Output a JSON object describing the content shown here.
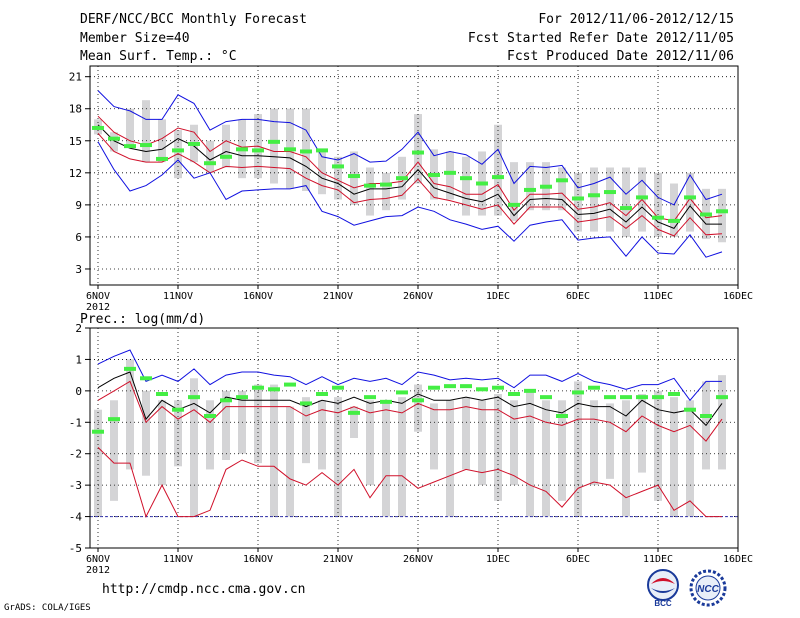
{
  "header": {
    "title": "DERF/NCC/BCC Monthly Forecast",
    "member_size": "Member Size=40",
    "variable": "Mean Surf. Temp.: °C",
    "period": "For 2012/11/06-2012/12/15",
    "started": "Fcst Started Refer Date 2012/11/05",
    "produced": "Fcst Produced Date 2012/11/06"
  },
  "footer": {
    "url": "http://cmdp.ncc.cma.gov.cn",
    "grads": "GrADS: COLA/IGES",
    "logo_left_text": "BCC",
    "logo_right_text": "NCC"
  },
  "colors": {
    "blue": "#1010e0",
    "red": "#d0102a",
    "black": "#000000",
    "green": "#44ee44",
    "bar": "#d4d4d6",
    "grid": "#000000"
  },
  "chart_data": [
    {
      "type": "line",
      "title": "Mean Surf. Temp.: °C",
      "ylabel": "°C",
      "ylim": [
        1.5,
        22
      ],
      "yticks": [
        3,
        6,
        9,
        12,
        15,
        18,
        21
      ],
      "xticks": [
        {
          "day": 1,
          "label": "6NOV",
          "sub": "2012"
        },
        {
          "day": 6,
          "label": "11NOV"
        },
        {
          "day": 11,
          "label": "16NOV"
        },
        {
          "day": 16,
          "label": "21NOV"
        },
        {
          "day": 21,
          "label": "26NOV"
        },
        {
          "day": 26,
          "label": "1DEC"
        },
        {
          "day": 31,
          "label": "6DEC"
        },
        {
          "day": 36,
          "label": "11DEC"
        },
        {
          "day": 41,
          "label": "16DEC"
        }
      ],
      "days": [
        1,
        2,
        3,
        4,
        5,
        6,
        7,
        8,
        9,
        10,
        11,
        12,
        13,
        14,
        15,
        16,
        17,
        18,
        19,
        20,
        21,
        22,
        23,
        24,
        25,
        26,
        27,
        28,
        29,
        30,
        31,
        32,
        33,
        34,
        35,
        36,
        37,
        38,
        39,
        40
      ],
      "series": [
        {
          "name": "max",
          "color": "blue",
          "values": [
            19.7,
            18.2,
            17.8,
            17.0,
            17.0,
            19.3,
            18.5,
            16.0,
            16.8,
            17.0,
            17.0,
            16.8,
            16.7,
            16.0,
            13.5,
            13.2,
            13.8,
            13.0,
            13.1,
            14.2,
            15.8,
            13.6,
            14.0,
            13.7,
            12.8,
            14.2,
            11.0,
            12.6,
            12.5,
            12.7,
            10.6,
            11.0,
            11.6,
            10.0,
            11.3,
            9.7,
            9.0,
            11.8,
            9.5,
            10.0
          ]
        },
        {
          "name": "upper",
          "color": "red",
          "values": [
            17.3,
            15.8,
            15.0,
            14.6,
            15.2,
            16.2,
            15.8,
            14.0,
            15.0,
            14.4,
            14.5,
            14.0,
            14.0,
            13.5,
            12.0,
            11.3,
            10.6,
            11.0,
            11.0,
            11.2,
            13.0,
            11.0,
            10.7,
            10.0,
            10.0,
            10.9,
            8.5,
            10.0,
            10.0,
            10.1,
            8.6,
            8.8,
            9.2,
            8.0,
            9.5,
            7.8,
            7.5,
            9.6,
            7.8,
            8.0
          ]
        },
        {
          "name": "mean",
          "color": "black",
          "values": [
            16.5,
            15.0,
            14.3,
            14.0,
            14.2,
            15.2,
            14.5,
            13.2,
            14.0,
            13.6,
            13.6,
            13.5,
            13.4,
            12.6,
            11.5,
            11.0,
            10.0,
            10.5,
            10.5,
            10.7,
            12.3,
            10.6,
            10.1,
            9.6,
            9.3,
            10.0,
            8.0,
            9.5,
            9.6,
            9.5,
            8.1,
            8.2,
            8.6,
            7.4,
            8.8,
            7.4,
            6.8,
            8.9,
            7.2,
            7.2
          ]
        },
        {
          "name": "lower",
          "color": "red",
          "values": [
            15.7,
            14.0,
            13.3,
            13.0,
            13.0,
            13.8,
            13.0,
            12.0,
            12.6,
            12.5,
            12.6,
            12.5,
            12.4,
            11.5,
            10.8,
            10.4,
            9.2,
            9.5,
            9.6,
            9.9,
            11.4,
            9.7,
            9.4,
            9.0,
            8.6,
            9.0,
            7.2,
            8.8,
            8.8,
            8.8,
            7.4,
            7.6,
            7.9,
            6.8,
            8.0,
            6.7,
            6.1,
            7.8,
            6.2,
            6.3
          ]
        },
        {
          "name": "min",
          "color": "blue",
          "values": [
            14.9,
            12.3,
            10.3,
            10.8,
            11.8,
            13.2,
            11.5,
            12.0,
            9.5,
            10.3,
            10.4,
            10.5,
            10.5,
            10.8,
            8.4,
            7.9,
            7.1,
            7.5,
            7.9,
            8.0,
            8.8,
            8.4,
            7.6,
            7.2,
            6.7,
            7.0,
            5.6,
            7.1,
            7.4,
            7.6,
            5.7,
            5.9,
            6.0,
            4.2,
            6.0,
            4.5,
            4.4,
            6.2,
            4.1,
            4.6
          ]
        },
        {
          "name": "observed",
          "color": "green",
          "marker": "dash",
          "values": [
            16.2,
            15.2,
            14.5,
            14.6,
            13.3,
            14.1,
            14.7,
            12.9,
            13.5,
            14.2,
            14.1,
            14.9,
            14.2,
            14.0,
            14.1,
            12.6,
            11.7,
            10.8,
            10.9,
            11.5,
            13.9,
            11.8,
            12.0,
            11.5,
            11.0,
            11.6,
            9.0,
            10.4,
            10.7,
            11.3,
            9.6,
            9.9,
            10.2,
            8.7,
            9.7,
            7.8,
            7.5,
            9.7,
            8.1,
            8.4
          ]
        }
      ],
      "boxes": [
        [
          15.6,
          17.0
        ],
        [
          14.0,
          15.8
        ],
        [
          14.5,
          18.0
        ],
        [
          13.0,
          18.8
        ],
        [
          13.0,
          17.0
        ],
        [
          11.5,
          16.0
        ],
        [
          13.0,
          16.5
        ],
        [
          12.0,
          15.0
        ],
        [
          12.5,
          16.5
        ],
        [
          11.5,
          17.0
        ],
        [
          11.5,
          17.5
        ],
        [
          11.0,
          18.0
        ],
        [
          10.5,
          18.0
        ],
        [
          10.3,
          18.0
        ],
        [
          10.0,
          14.0
        ],
        [
          9.5,
          13.5
        ],
        [
          9.0,
          14.0
        ],
        [
          8.0,
          12.5
        ],
        [
          8.5,
          12.0
        ],
        [
          9.5,
          13.5
        ],
        [
          11.0,
          17.5
        ],
        [
          9.5,
          14.2
        ],
        [
          9.5,
          14.0
        ],
        [
          8.0,
          13.5
        ],
        [
          8.0,
          14.0
        ],
        [
          8.0,
          16.5
        ],
        [
          7.5,
          13.0
        ],
        [
          8.5,
          13.0
        ],
        [
          8.5,
          13.0
        ],
        [
          8.5,
          12.5
        ],
        [
          6.5,
          12.0
        ],
        [
          6.5,
          12.5
        ],
        [
          6.5,
          12.5
        ],
        [
          6.0,
          12.5
        ],
        [
          6.5,
          12.5
        ],
        [
          6.0,
          12.0
        ],
        [
          6.0,
          11.0
        ],
        [
          6.5,
          12.0
        ],
        [
          5.8,
          10.5
        ],
        [
          5.5,
          10.5
        ]
      ]
    },
    {
      "type": "line",
      "title": "Prec.: log(mm/d)",
      "ylabel": "log(mm/d)",
      "ylim": [
        -5,
        2
      ],
      "yticks": [
        -5,
        -4,
        -3,
        -2,
        -1,
        0,
        1,
        2
      ],
      "baseline": -4,
      "xticks": [
        {
          "day": 1,
          "label": "6NOV",
          "sub": "2012"
        },
        {
          "day": 6,
          "label": "11NOV"
        },
        {
          "day": 11,
          "label": "16NOV"
        },
        {
          "day": 16,
          "label": "21NOV"
        },
        {
          "day": 21,
          "label": "26NOV"
        },
        {
          "day": 26,
          "label": "1DEC"
        },
        {
          "day": 31,
          "label": "6DEC"
        },
        {
          "day": 36,
          "label": "11DEC"
        },
        {
          "day": 41,
          "label": "16DEC"
        }
      ],
      "days": [
        1,
        2,
        3,
        4,
        5,
        6,
        7,
        8,
        9,
        10,
        11,
        12,
        13,
        14,
        15,
        16,
        17,
        18,
        19,
        20,
        21,
        22,
        23,
        24,
        25,
        26,
        27,
        28,
        29,
        30,
        31,
        32,
        33,
        34,
        35,
        36,
        37,
        38,
        39,
        40
      ],
      "series": [
        {
          "name": "max",
          "color": "blue",
          "values": [
            0.85,
            1.1,
            1.3,
            0.3,
            0.5,
            0.3,
            0.7,
            0.2,
            0.5,
            0.6,
            0.6,
            0.5,
            0.45,
            0.2,
            0.45,
            0.2,
            0.4,
            0.3,
            0.4,
            0.2,
            0.6,
            0.5,
            0.35,
            0.4,
            0.35,
            0.4,
            0.1,
            0.5,
            0.5,
            0.3,
            0.55,
            0.3,
            0.2,
            0.05,
            0.2,
            0.2,
            0.4,
            -0.3,
            0.3,
            0.3
          ]
        },
        {
          "name": "mean",
          "color": "black",
          "values": [
            0.1,
            0.4,
            0.6,
            -0.9,
            -0.3,
            -0.6,
            -0.4,
            -0.7,
            -0.2,
            -0.3,
            -0.3,
            -0.3,
            -0.3,
            -0.5,
            -0.3,
            -0.4,
            -0.2,
            -0.4,
            -0.3,
            -0.4,
            -0.1,
            -0.3,
            -0.3,
            -0.2,
            -0.3,
            -0.2,
            -0.5,
            -0.4,
            -0.6,
            -0.7,
            -0.4,
            -0.5,
            -0.5,
            -0.8,
            -0.3,
            -0.6,
            -0.7,
            -0.6,
            -1.1,
            -0.4
          ]
        },
        {
          "name": "upper",
          "color": "red",
          "values": [
            -0.3,
            0.0,
            0.3,
            -1.0,
            -0.5,
            -0.9,
            -0.6,
            -1.0,
            -0.5,
            -0.5,
            -0.5,
            -0.5,
            -0.5,
            -0.8,
            -0.6,
            -0.7,
            -0.5,
            -0.7,
            -0.6,
            -0.7,
            -0.4,
            -0.6,
            -0.6,
            -0.5,
            -0.6,
            -0.6,
            -0.9,
            -0.8,
            -1.0,
            -1.1,
            -0.9,
            -0.9,
            -1.0,
            -1.3,
            -0.8,
            -1.1,
            -1.3,
            -1.1,
            -1.6,
            -0.9
          ]
        },
        {
          "name": "lower",
          "color": "red",
          "values": [
            -1.8,
            -2.3,
            -2.3,
            -4.0,
            -3.0,
            -4.0,
            -4.0,
            -3.8,
            -2.5,
            -2.2,
            -2.4,
            -2.4,
            -2.8,
            -3.0,
            -2.6,
            -3.0,
            -2.5,
            -3.4,
            -2.7,
            -2.7,
            -3.1,
            -2.9,
            -2.7,
            -2.5,
            -2.6,
            -2.5,
            -2.7,
            -3.0,
            -3.2,
            -3.7,
            -3.1,
            -2.9,
            -3.0,
            -3.4,
            -3.2,
            -3.0,
            -3.8,
            -3.5,
            -4.0,
            -4.0
          ]
        },
        {
          "name": "observed",
          "color": "green",
          "marker": "dash",
          "values": [
            -1.3,
            -0.9,
            0.7,
            0.4,
            -0.1,
            -0.6,
            -0.2,
            -0.8,
            -0.3,
            -0.2,
            0.1,
            0.05,
            0.2,
            -0.4,
            -0.1,
            0.1,
            -0.7,
            -0.2,
            -0.35,
            -0.05,
            -0.3,
            0.1,
            0.15,
            0.15,
            0.05,
            0.1,
            -0.1,
            0.0,
            -0.2,
            -0.8,
            -0.05,
            0.1,
            -0.2,
            -0.2,
            -0.2,
            -0.2,
            -0.1,
            -0.6,
            -0.8,
            -0.2
          ]
        }
      ],
      "boxes": [
        [
          -4.0,
          -0.6
        ],
        [
          -3.5,
          -0.3
        ],
        [
          -2.5,
          1.0
        ],
        [
          -2.7,
          0.0
        ],
        [
          -3.0,
          -0.3
        ],
        [
          -2.4,
          -0.3
        ],
        [
          -4.0,
          0.4
        ],
        [
          -2.5,
          -0.3
        ],
        [
          -2.2,
          0.0
        ],
        [
          -2.0,
          0.0
        ],
        [
          -2.3,
          0.2
        ],
        [
          -4.0,
          0.2
        ],
        [
          -4.0,
          -0.5
        ],
        [
          -2.3,
          -0.2
        ],
        [
          -2.5,
          -0.3
        ],
        [
          -4.0,
          -0.2
        ],
        [
          -1.5,
          -0.5
        ],
        [
          -3.0,
          -0.3
        ],
        [
          -4.0,
          -0.3
        ],
        [
          -4.0,
          -0.2
        ],
        [
          -1.3,
          0.2
        ],
        [
          -2.5,
          -0.4
        ],
        [
          -4.0,
          -0.3
        ],
        [
          -2.5,
          -0.2
        ],
        [
          -3.0,
          -0.3
        ],
        [
          -3.5,
          -0.1
        ],
        [
          -3.0,
          -0.3
        ],
        [
          -4.0,
          0.0
        ],
        [
          -4.0,
          -0.3
        ],
        [
          -3.5,
          -0.3
        ],
        [
          -4.0,
          0.3
        ],
        [
          -3.0,
          -0.3
        ],
        [
          -2.8,
          -0.4
        ],
        [
          -4.0,
          -0.3
        ],
        [
          -2.6,
          -0.1
        ],
        [
          -3.5,
          0.0
        ],
        [
          -4.0,
          -0.2
        ],
        [
          -4.0,
          -0.3
        ],
        [
          -2.5,
          0.3
        ],
        [
          -2.5,
          0.5
        ]
      ]
    }
  ]
}
